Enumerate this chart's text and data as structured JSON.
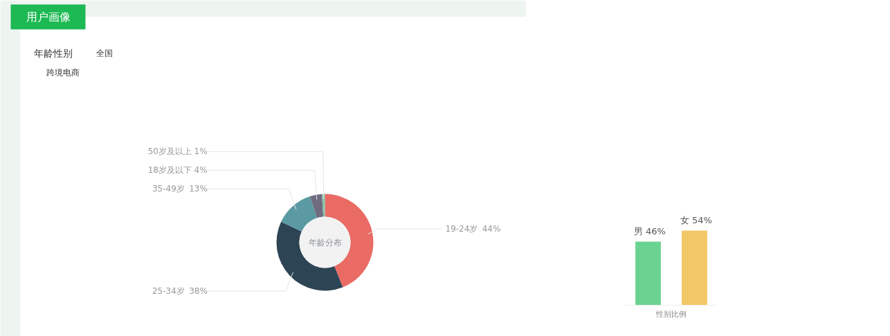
{
  "chart_data": [
    {
      "type": "donut",
      "title": "年龄分布",
      "annotations": [
        "用户画像",
        "年龄性别",
        "全国",
        "跨境电商"
      ],
      "categories": [
        "19-24岁",
        "25-34岁",
        "35-49岁",
        "18岁及以下",
        "50岁及以上"
      ],
      "values": [
        44,
        38,
        13,
        4,
        1
      ],
      "value_labels": [
        "44%",
        "38%",
        "13%",
        "4%",
        "1%"
      ],
      "colors": [
        "#e96b64",
        "#2d4454",
        "#5b9aa3",
        "#6f6c80",
        "#86c1a6"
      ]
    },
    {
      "type": "bar",
      "xlabel": "性别比例",
      "categories": [
        "男",
        "女"
      ],
      "values": [
        46,
        54
      ],
      "value_labels": [
        "46%",
        "54%"
      ],
      "colors": [
        "#6bd391",
        "#f2c766"
      ]
    }
  ]
}
